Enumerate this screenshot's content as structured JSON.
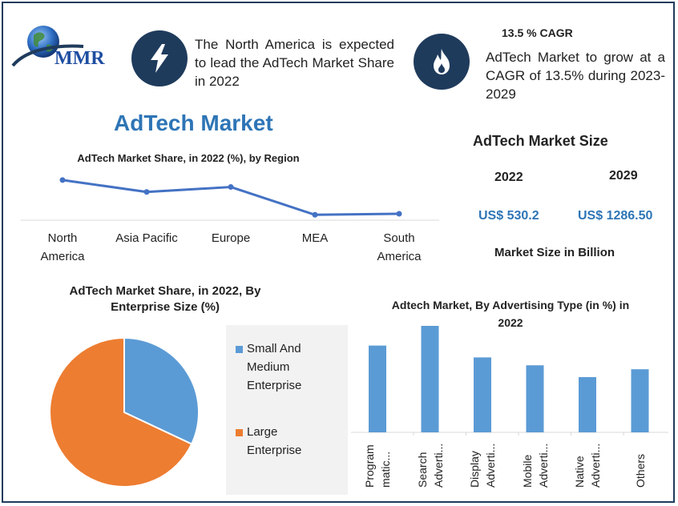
{
  "logo": {
    "text": "MMR"
  },
  "facts": [
    {
      "icon": "lightning-bolt-icon",
      "text": "The North America is expected to lead the AdTech Market Share in 2022"
    },
    {
      "icon": "flame-icon",
      "title": "13.5 % CAGR",
      "text": "AdTech Market to grow at a CAGR of 13.5% during 2023-2029"
    }
  ],
  "main_title": "AdTech Market",
  "market_size": {
    "title": "AdTech Market Size",
    "years": [
      "2022",
      "2029"
    ],
    "values": [
      "US$ 530.2",
      "US$ 1286.50"
    ],
    "unit": "Market Size in Billion"
  },
  "colors": {
    "navy": "#1f3b5c",
    "blue": "#4472c4",
    "light_blue": "#5b9bd5",
    "orange": "#ed7d31",
    "title_blue": "#2e75b6"
  },
  "chart_data": [
    {
      "type": "line",
      "title": "AdTech Market Share, in 2022 (%), by Region",
      "categories": [
        "North\nAmerica",
        "Asia Pacific",
        "Europe",
        "MEA",
        "South\nAmerica"
      ],
      "values": [
        38,
        26,
        31,
        3,
        4
      ],
      "ylim": [
        0,
        50
      ],
      "grid": false,
      "legend": "none"
    },
    {
      "type": "pie",
      "title": "AdTech Market Share, in 2022, By Enterprise Size (%)",
      "labels": [
        "Small And Medium Enterprise",
        "Large Enterprise"
      ],
      "values": [
        32,
        68
      ],
      "legend": "right"
    },
    {
      "type": "bar",
      "title": "Adtech Market, By Advertising Type (in %) in 2022",
      "categories": [
        "Program\nmatic...",
        "Search\nAdverti...",
        "Display\nAdverti...",
        "Mobile\nAdverti...",
        "Native\nAdverti...",
        "Others"
      ],
      "values": [
        22,
        27,
        19,
        17,
        14,
        16
      ],
      "ylim": [
        0,
        27
      ],
      "grid": false,
      "legend": "none"
    }
  ]
}
